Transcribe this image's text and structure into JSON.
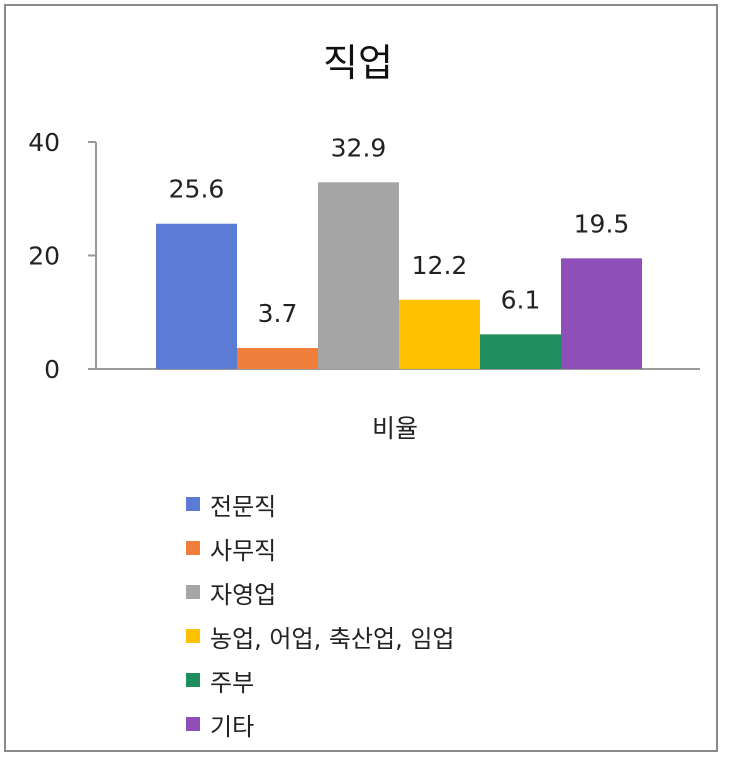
{
  "chart_data": {
    "type": "bar",
    "title": "직업",
    "xlabel": "비율",
    "ylabel": "",
    "ylim": [
      0,
      40
    ],
    "yticks": [
      0,
      20,
      40
    ],
    "categories": [
      "비율"
    ],
    "series": [
      {
        "name": "전문직",
        "values": [
          25.6
        ],
        "color": "#5b7bd5"
      },
      {
        "name": "사무직",
        "values": [
          3.7
        ],
        "color": "#f07f3c"
      },
      {
        "name": "자영업",
        "values": [
          32.9
        ],
        "color": "#a5a5a5"
      },
      {
        "name": "농업, 어업, 축산업, 임업",
        "values": [
          12.2
        ],
        "color": "#ffc000"
      },
      {
        "name": "주부",
        "values": [
          6.1
        ],
        "color": "#1f8e5c"
      },
      {
        "name": "기타",
        "values": [
          19.5
        ],
        "color": "#8e4fb8"
      }
    ],
    "data_labels": [
      "25.6",
      "3.7",
      "32.9",
      "12.2",
      "6.1",
      "19.5"
    ],
    "legend_position": "bottom",
    "grid": false
  }
}
